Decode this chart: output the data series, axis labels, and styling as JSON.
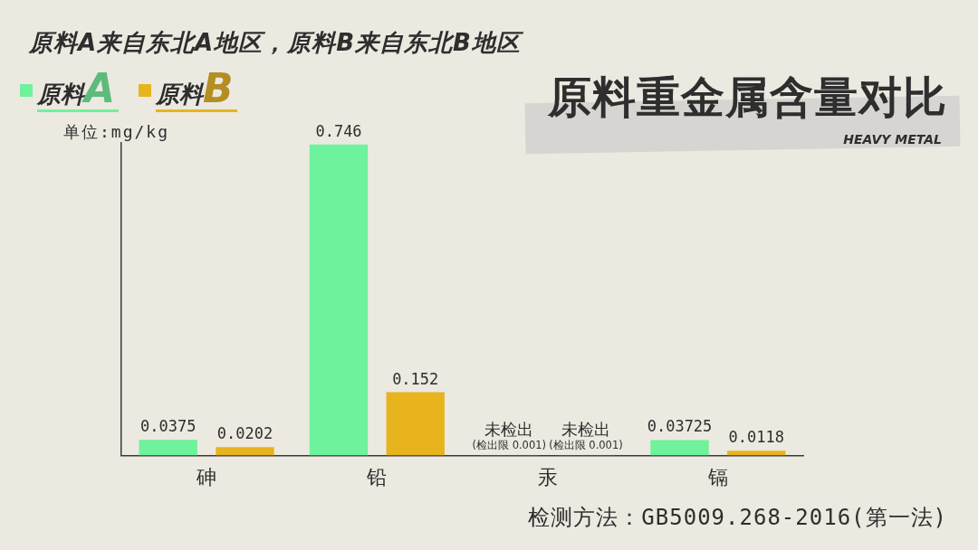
{
  "chart_data": {
    "type": "bar",
    "title": "原料重金属含量对比",
    "subtitle": "HEAVY METAL",
    "ylabel": "单位:mg/kg",
    "annotations": [
      "原料A来自东北A地区，原料B来自东北B地区",
      "检测方法：GB5009.268-2016(第一法)"
    ],
    "categories": [
      "砷",
      "铅",
      "汞",
      "镉"
    ],
    "series": [
      {
        "name": "原料A",
        "color": "#6ef29c",
        "values": [
          0.0375,
          0.746,
          0.001,
          0.03725
        ],
        "value_labels": [
          "0.0375",
          "0.746",
          "未检出\n(检出限 0.001)",
          "0.03725"
        ]
      },
      {
        "name": "原料B",
        "color": "#e8b41d",
        "values": [
          0.0202,
          0.152,
          0.001,
          0.0118
        ],
        "value_labels": [
          "0.0202",
          "0.152",
          "未检出\n(检出限 0.001)",
          "0.0118"
        ]
      }
    ],
    "ylim": [
      0,
      0.75
    ],
    "tick_labels": "x",
    "legend": "top left"
  }
}
